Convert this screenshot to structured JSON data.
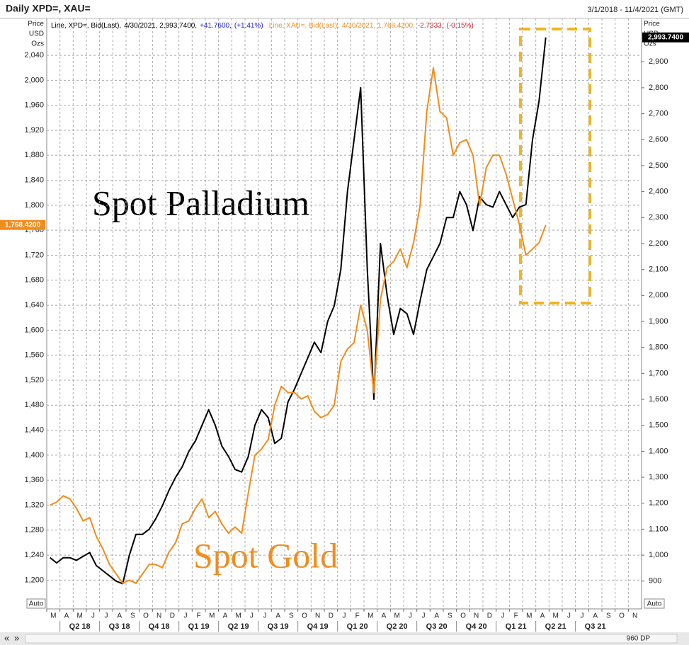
{
  "chart_data": {
    "type": "line",
    "title": "Daily XPD=, XAU=",
    "date_range": "3/1/2018 - 11/4/2021 (GMT)",
    "y_unit": [
      "Price",
      "USD",
      "Ozs"
    ],
    "y2_unit": [
      "Price",
      "USD",
      "Ozs"
    ],
    "auto_label": "Auto",
    "points_label": "960 DP",
    "annotations": [
      {
        "text": "Spot Palladium",
        "color": "#000000"
      },
      {
        "text": "Spot Gold",
        "color": "#f28c1b"
      }
    ],
    "categories": [
      "M",
      null,
      "A",
      null,
      "M",
      null,
      "J",
      null,
      "J",
      null,
      "A",
      null,
      "S",
      null,
      "O",
      null,
      "N",
      null,
      "D",
      null,
      "J",
      null,
      "F",
      null,
      "M",
      null,
      "A",
      null,
      "M",
      null,
      "J",
      null,
      "J",
      null,
      "A",
      null,
      "S",
      null,
      "O",
      null,
      "N",
      null,
      "D",
      null,
      "J",
      null,
      "F",
      null,
      "M",
      null,
      "A",
      null,
      "M",
      null,
      "J",
      null,
      "J",
      null,
      "A",
      null,
      "S",
      null,
      "O",
      null,
      "N",
      null,
      "D",
      null,
      "J",
      null,
      "F",
      null,
      "M",
      null,
      "A",
      null,
      "M",
      null,
      "J",
      null,
      "J",
      null,
      "A",
      null,
      "S",
      null,
      "O",
      null,
      "N",
      null
    ],
    "quarters": [
      "Q2 18",
      "Q3 18",
      "Q4 18",
      "Q1 19",
      "Q2 19",
      "Q3 19",
      "Q4 19",
      "Q1 20",
      "Q2 20",
      "Q3 20",
      "Q4 20",
      "Q1 21",
      "Q2 21",
      "Q3 21"
    ],
    "series": [
      {
        "name": "Line, XPD=, Bid(Last),",
        "details": [
          "4/30/2021, 2,993.7400,",
          "+41.7600,",
          "(+1.41%)"
        ],
        "color": "#000000",
        "change_color": "#1f1fd0",
        "axis": "y2",
        "values": [
          990,
          970,
          990,
          990,
          980,
          995,
          1010,
          960,
          940,
          920,
          900,
          890,
          1000,
          1080,
          1080,
          1100,
          1140,
          1190,
          1250,
          1300,
          1340,
          1400,
          1440,
          1500,
          1560,
          1500,
          1420,
          1380,
          1330,
          1320,
          1380,
          1500,
          1560,
          1530,
          1430,
          1450,
          1590,
          1640,
          1700,
          1760,
          1820,
          1780,
          1900,
          1960,
          2100,
          2400,
          2600,
          2800,
          2100,
          1600,
          2200,
          2000,
          1850,
          1950,
          1930,
          1850,
          1980,
          2100,
          2150,
          2200,
          2300,
          2300,
          2400,
          2350,
          2250,
          2380,
          2350,
          2340,
          2400,
          2350,
          2300,
          2340,
          2350,
          2600,
          2750,
          2993.74,
          null,
          null,
          null,
          null,
          null,
          null,
          null,
          null,
          null,
          null,
          null,
          null,
          null,
          null
        ],
        "value_labels": [
          null,
          null,
          null,
          null,
          null,
          null,
          null,
          null,
          null,
          null,
          null,
          null,
          null,
          null,
          null,
          null,
          null,
          null,
          null,
          null,
          null,
          null,
          null,
          null,
          null,
          null,
          null,
          null,
          null,
          null,
          null,
          null,
          null,
          null,
          null,
          null,
          null,
          null,
          null,
          null,
          null,
          null,
          null,
          null,
          null,
          null,
          null,
          null,
          null,
          null,
          null,
          null,
          null,
          null,
          null,
          null,
          null,
          null,
          null,
          null,
          null,
          null,
          null,
          null,
          null,
          null,
          null,
          null,
          null,
          null,
          null,
          null,
          null,
          null,
          null,
          "2,993.7400",
          null,
          null,
          null,
          null,
          null,
          null,
          null,
          null,
          null,
          null,
          null,
          null,
          null,
          null
        ]
      },
      {
        "name": "Line, XAU=, Bid(Last),",
        "details": [
          "4/30/2021, 1,768.4200,",
          "-2.7333,",
          "(-0.15%)"
        ],
        "color": "#f28c1b",
        "change_color": "#d0202a",
        "axis": "y",
        "values": [
          1320,
          1325,
          1335,
          1330,
          1315,
          1295,
          1300,
          1270,
          1250,
          1225,
          1210,
          1195,
          1200,
          1195,
          1210,
          1225,
          1225,
          1220,
          1245,
          1260,
          1290,
          1295,
          1315,
          1330,
          1300,
          1310,
          1290,
          1275,
          1285,
          1275,
          1340,
          1400,
          1410,
          1425,
          1480,
          1510,
          1500,
          1500,
          1490,
          1495,
          1470,
          1460,
          1465,
          1480,
          1550,
          1570,
          1580,
          1640,
          1600,
          1500,
          1650,
          1700,
          1710,
          1730,
          1700,
          1740,
          1800,
          1950,
          2020,
          1950,
          1940,
          1880,
          1900,
          1905,
          1880,
          1800,
          1860,
          1880,
          1880,
          1850,
          1810,
          1770,
          1720,
          1730,
          1740,
          1768.42,
          null,
          null,
          null,
          null,
          null,
          null,
          null,
          null,
          null,
          null,
          null,
          null,
          null,
          null
        ],
        "value_labels": [
          null,
          null,
          null,
          null,
          null,
          null,
          null,
          null,
          null,
          null,
          null,
          null,
          null,
          null,
          null,
          null,
          null,
          null,
          null,
          null,
          null,
          null,
          null,
          null,
          null,
          null,
          null,
          null,
          null,
          null,
          null,
          null,
          null,
          null,
          null,
          null,
          null,
          null,
          null,
          null,
          null,
          null,
          null,
          null,
          null,
          null,
          null,
          null,
          null,
          null,
          null,
          null,
          null,
          null,
          null,
          null,
          null,
          null,
          null,
          null,
          null,
          null,
          null,
          null,
          null,
          null,
          null,
          null,
          null,
          null,
          null,
          null,
          null,
          null,
          null,
          "1,768.4200",
          null,
          null,
          null,
          null,
          null,
          null,
          null,
          null,
          null,
          null,
          null,
          null,
          null,
          null
        ]
      }
    ],
    "ylim": [
      1154,
      2099
    ],
    "yticks": [
      {
        "value": 1200,
        "label": "1,200"
      },
      {
        "value": 1240,
        "label": "1,240"
      },
      {
        "value": 1280,
        "label": "1,280"
      },
      {
        "value": 1320,
        "label": "1,320"
      },
      {
        "value": 1360,
        "label": "1,360"
      },
      {
        "value": 1400,
        "label": "1,400"
      },
      {
        "value": 1440,
        "label": "1,440"
      },
      {
        "value": 1480,
        "label": "1,480"
      },
      {
        "value": 1520,
        "label": "1,520"
      },
      {
        "value": 1560,
        "label": "1,560"
      },
      {
        "value": 1600,
        "label": "1,600"
      },
      {
        "value": 1640,
        "label": "1,640"
      },
      {
        "value": 1680,
        "label": "1,680"
      },
      {
        "value": 1720,
        "label": "1,720"
      },
      {
        "value": 1760,
        "label": "1,760"
      },
      {
        "value": 1800,
        "label": "1,800"
      },
      {
        "value": 1840,
        "label": "1,840"
      },
      {
        "value": 1880,
        "label": "1,880"
      },
      {
        "value": 1920,
        "label": "1,920"
      },
      {
        "value": 1960,
        "label": "1,960"
      },
      {
        "value": 2000,
        "label": "2,000"
      },
      {
        "value": 2040,
        "label": "2,040"
      }
    ],
    "y2lim": [
      793,
      3067
    ],
    "y2ticks": [
      900,
      {
        "value": 1000,
        "label": "1,000"
      },
      {
        "value": 1100,
        "label": "1,100"
      },
      {
        "value": 1200,
        "label": "1,200"
      },
      {
        "value": 1300,
        "label": "1,300"
      },
      {
        "value": 1400,
        "label": "1,400"
      },
      {
        "value": 1500,
        "label": "1,500"
      },
      {
        "value": 1600,
        "label": "1,600"
      },
      {
        "value": 1700,
        "label": "1,700"
      },
      {
        "value": 1800,
        "label": "1,800"
      },
      {
        "value": 1900,
        "label": "1,900"
      },
      {
        "value": 2000,
        "label": "2,000"
      },
      {
        "value": 2100,
        "label": "2,100"
      },
      {
        "value": 2200,
        "label": "2,200"
      },
      {
        "value": 2300,
        "label": "2,300"
      },
      {
        "value": 2400,
        "label": "2,400"
      },
      {
        "value": 2500,
        "label": "2,500"
      },
      {
        "value": 2600,
        "label": "2,600"
      },
      {
        "value": 2700,
        "label": "2,700"
      },
      {
        "value": 2800,
        "label": "2,800"
      },
      {
        "value": 2900,
        "label": "2,900"
      }
    ],
    "grid": true
  }
}
